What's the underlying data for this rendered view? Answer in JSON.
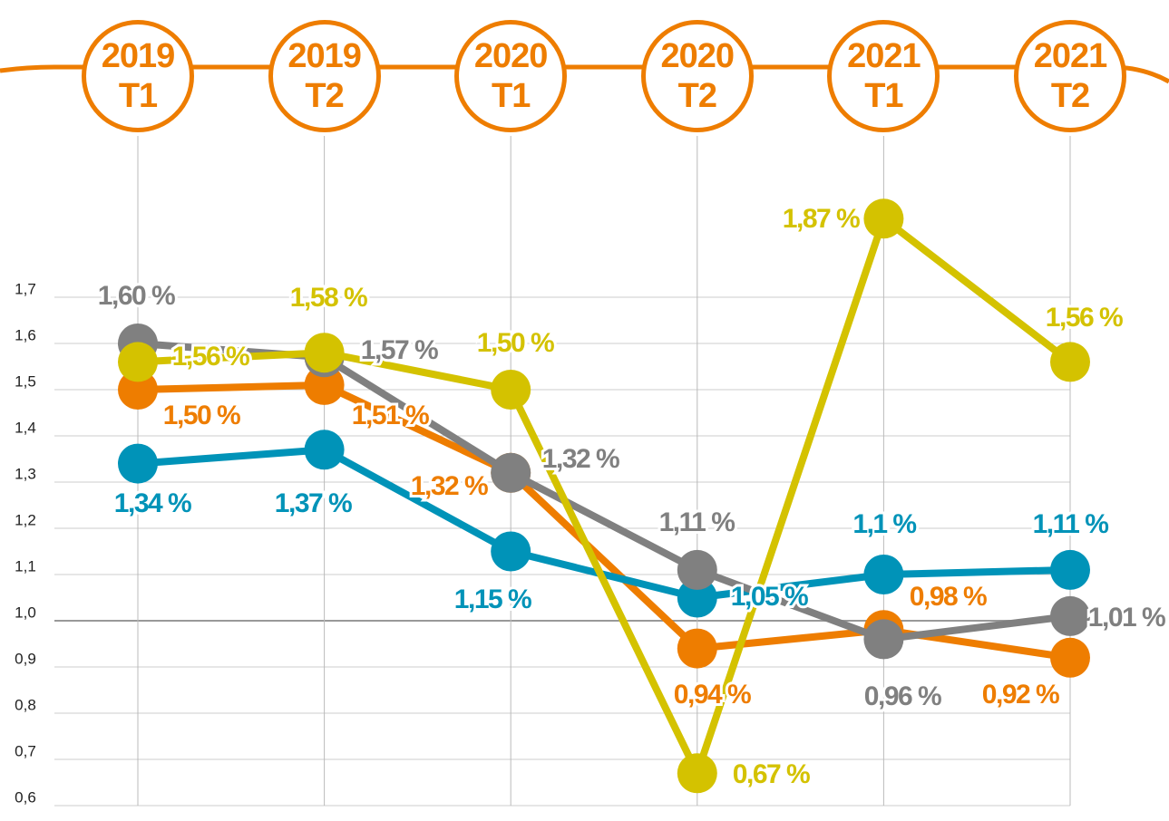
{
  "chart_data": {
    "type": "line",
    "categories": [
      "2019\nT1",
      "2019\nT2",
      "2020\nT1",
      "2020\nT2",
      "2021\nT1",
      "2021\nT2"
    ],
    "ylim": [
      0.6,
      1.7
    ],
    "yticks": [
      {
        "value": 0.6,
        "label": "0,6"
      },
      {
        "value": 0.7,
        "label": "0,7"
      },
      {
        "value": 0.8,
        "label": "0,8"
      },
      {
        "value": 0.9,
        "label": "0,9"
      },
      {
        "value": 1.0,
        "label": "1,0"
      },
      {
        "value": 1.1,
        "label": "1,1"
      },
      {
        "value": 1.2,
        "label": "1,2"
      },
      {
        "value": 1.3,
        "label": "1,3"
      },
      {
        "value": 1.4,
        "label": "1,4"
      },
      {
        "value": 1.5,
        "label": "1,5"
      },
      {
        "value": 1.6,
        "label": "1,6"
      },
      {
        "value": 1.7,
        "label": "1,7"
      }
    ],
    "grid": true,
    "series": [
      {
        "color": "#ee7d00",
        "values": [
          1.5,
          1.51,
          1.32,
          0.94,
          0.98,
          0.92
        ],
        "value_labels": [
          "1,50 %",
          "1,51 %",
          "1,32 %",
          "0,94 %",
          "0,98 %",
          "0,92 %"
        ]
      },
      {
        "color": "#0093b8",
        "values": [
          1.34,
          1.37,
          1.15,
          1.05,
          1.1,
          1.11
        ],
        "value_labels": [
          "1,34 %",
          "1,37 %",
          "1,15 %",
          "1,05 %",
          "1,1 %",
          "1,11 %"
        ]
      },
      {
        "color": "#808080",
        "values": [
          1.6,
          1.57,
          1.32,
          1.11,
          0.96,
          1.01
        ],
        "value_labels": [
          "1,60 %",
          "1,57 %",
          "1,32 %",
          "1,11 %",
          "0,96 %",
          "1,01 %"
        ]
      },
      {
        "color": "#d4c200",
        "values": [
          1.56,
          1.58,
          1.5,
          0.67,
          1.87,
          1.56
        ],
        "value_labels": [
          "1,56 %",
          "1,58 %",
          "1,50 %",
          "0,67 %",
          "1,87 %",
          "1,56 %"
        ]
      }
    ]
  }
}
